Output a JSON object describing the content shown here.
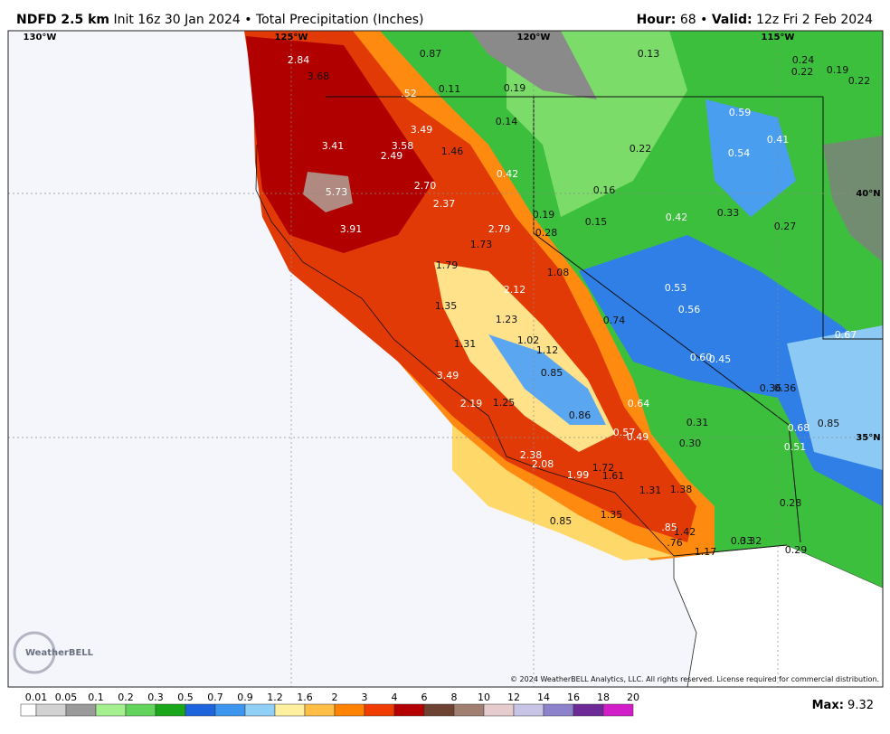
{
  "header": {
    "model": "NDFD 2.5 km",
    "init": "Init 16z 30 Jan 2024",
    "separator": "•",
    "product": "Total Precipitation (Inches)",
    "hour_label": "Hour:",
    "hour": "68",
    "valid_label": "Valid:",
    "valid": "12z Fri 2 Feb 2024"
  },
  "map": {
    "longitudes": [
      "130°W",
      "125°W",
      "120°W",
      "115°W"
    ],
    "latitudes": [
      "40°N",
      "35°N"
    ],
    "point_values": [
      "0.87",
      "0.13",
      "2.84",
      "3.68",
      "0.24",
      "0.22",
      "0.19",
      "0.22",
      ".52",
      "0.11",
      "0.19",
      "0.14",
      "0.59",
      "3.49",
      "3.41",
      "3.58",
      "2.49",
      "1.46",
      "0.22",
      "0.41",
      "0.54",
      "0.42",
      "5.73",
      "2.70",
      "0.16",
      "2.37",
      "0.19",
      "0.42",
      "0.33",
      "0.15",
      "0.27",
      "3.91",
      "2.79",
      "0.28",
      "1.73",
      "1.79",
      "1.08",
      "2.12",
      "0.53",
      "1.35",
      "0.56",
      "0.74",
      "1.23",
      "0.67",
      "1.02",
      "1.12",
      "1.31",
      "0.60",
      "0.45",
      "0.85",
      "3.49",
      "0.36",
      "0.36",
      "2.19",
      "1.25",
      "0.64",
      "0.86",
      "0.31",
      "0.85",
      "0.68",
      "0.57",
      "0.49",
      "0.30",
      "0.51",
      "2.38",
      "2.08",
      "1.72",
      "1.61",
      "1.99",
      "1.31",
      "1.38",
      "0.28",
      "1.35",
      "0.85",
      "1.42",
      "0.33",
      "0.32",
      "1.17",
      "0.29",
      ".76",
      ".85"
    ],
    "logo": "WeatherBELL",
    "copyright": "© 2024 WeatherBELL Analytics, LLC. All rights reserved. License required for commercial distribution."
  },
  "colorbar": {
    "labels": [
      "0.01",
      "0.05",
      "0.1",
      "0.2",
      "0.3",
      "0.5",
      "0.7",
      "0.9",
      "1.2",
      "1.6",
      "2",
      "3",
      "4",
      "6",
      "8",
      "10",
      "12",
      "14",
      "16",
      "18",
      "20"
    ],
    "colors": [
      "#ffffff",
      "#d2d2d2",
      "#9a9a9a",
      "#a4f08e",
      "#62d45c",
      "#1aa81a",
      "#1e64dc",
      "#3c96f0",
      "#90d0f6",
      "#fff0a0",
      "#ffbe46",
      "#ff8200",
      "#f03c00",
      "#b40000",
      "#6e4232",
      "#a07e70",
      "#e6cccc",
      "#c8c4e6",
      "#8c82cc",
      "#6e2a96",
      "#d21ec8"
    ]
  },
  "footer": {
    "max_label": "Max:",
    "max": "9.32"
  }
}
